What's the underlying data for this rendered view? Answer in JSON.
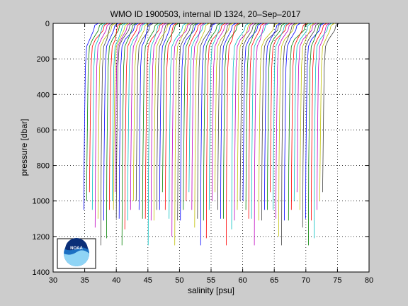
{
  "chart_data": {
    "type": "line",
    "title": "WMO ID 1900503, internal ID 1324, 20–Sep–2017",
    "xlabel": "salinity [psu]",
    "ylabel": "pressure [dbar]",
    "xlim": [
      30,
      80
    ],
    "ylim": [
      0,
      1400
    ],
    "y_reversed": true,
    "grid": true,
    "legend": "none",
    "x_ticks": [
      "30",
      "35",
      "40",
      "45",
      "50",
      "55",
      "60",
      "65",
      "70",
      "75",
      "80"
    ],
    "y_ticks": [
      "0",
      "200",
      "400",
      "600",
      "800",
      "1000",
      "1200",
      "1400"
    ],
    "series_colors": [
      "#0000ff",
      "#008000",
      "#ff0000",
      "#00bfbf",
      "#bf00bf",
      "#bfbf00",
      "#404040"
    ],
    "profile_groups": [
      {
        "surface_start": 36.6,
        "spacing": 0.45,
        "count": 12,
        "deep_salinity_start": 34.9
      },
      {
        "surface_start": 41.4,
        "spacing": 0.45,
        "count": 10,
        "deep_salinity_start": 39.6
      },
      {
        "surface_start": 45.8,
        "spacing": 0.45,
        "count": 9,
        "deep_salinity_start": 44.2
      },
      {
        "surface_start": 50.2,
        "spacing": 0.45,
        "count": 11,
        "deep_salinity_start": 48.4
      },
      {
        "surface_start": 55.2,
        "spacing": 0.45,
        "count": 10,
        "deep_salinity_start": 53.4
      },
      {
        "surface_start": 60.1,
        "spacing": 0.45,
        "count": 9,
        "deep_salinity_start": 58.3
      },
      {
        "surface_start": 64.6,
        "spacing": 0.45,
        "count": 10,
        "deep_salinity_start": 62.6
      },
      {
        "surface_start": 69.2,
        "spacing": 0.45,
        "count": 13,
        "deep_salinity_start": 67.3
      }
    ],
    "profile_bottom_pressures": [
      1050,
      1050,
      1000,
      1050,
      1150,
      1200,
      1250,
      1160,
      1210
    ],
    "thermocline_pressure": 130,
    "surface_offset_psu": 1.9
  },
  "logo": {
    "text": "NOAA"
  }
}
